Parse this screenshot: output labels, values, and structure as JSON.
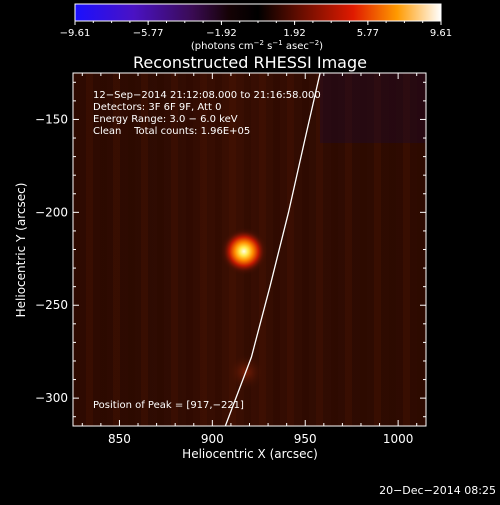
{
  "chart_data": {
    "type": "heatmap",
    "title": "Reconstructed RHESSI Image",
    "xlabel": "Heliocentric X (arcsec)",
    "ylabel": "Heliocentric Y (arcsec)",
    "xlim": [
      825,
      1015
    ],
    "ylim": [
      -315,
      -125
    ],
    "x_ticks": [
      850,
      900,
      950,
      1000
    ],
    "y_ticks": [
      -150,
      -200,
      -250,
      -300
    ],
    "x_tick_labels": [
      "850",
      "900",
      "950",
      "1000"
    ],
    "y_tick_labels": [
      "−150",
      "−200",
      "−250",
      "−300"
    ],
    "colorbar": {
      "min": -9.61,
      "max": 9.61,
      "ticks": [
        -9.61,
        -5.77,
        -1.92,
        1.92,
        5.77,
        9.61
      ],
      "tick_labels": [
        "−9.61",
        "−5.77",
        "−1.92",
        "1.92",
        "5.77",
        "9.61"
      ],
      "unit_prefix": "(photons cm",
      "unit_exp1": "−2",
      "unit_mid": " s",
      "unit_exp2": "−1",
      "unit_mid2": " asec",
      "unit_exp3": "−2",
      "unit_suffix": ")"
    },
    "source_peak": {
      "x": 917,
      "y": -221
    },
    "secondary_emission": {
      "x": 918,
      "y": -286
    },
    "annotations": {
      "line1": "12−Sep−2014 21:12:08.000 to 21:16:58.000",
      "line2": "Detectors: 3F 6F 9F, Att 0",
      "line3": "Energy Range: 3.0 − 6.0 keV",
      "line4": "Clean    Total counts: 1.96E+05",
      "peak_text": "Position of Peak = [917,−221]"
    },
    "limb_curve": [
      {
        "x": 958,
        "y": -125
      },
      {
        "x": 950,
        "y": -160
      },
      {
        "x": 941,
        "y": -200
      },
      {
        "x": 931,
        "y": -240
      },
      {
        "x": 921,
        "y": -278
      },
      {
        "x": 907,
        "y": -315
      }
    ]
  },
  "footer": {
    "timestamp": "20−Dec−2014 08:25"
  },
  "colors": {
    "background": "#000000",
    "map_base": "#3a0e02",
    "limb": "#ffffff"
  }
}
